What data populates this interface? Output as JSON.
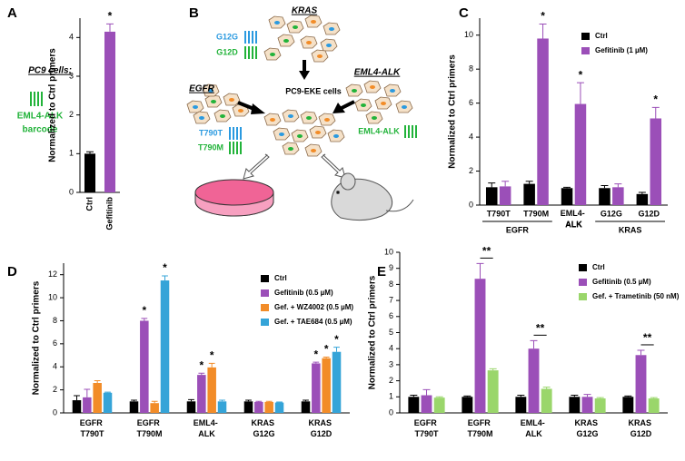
{
  "chart_data": [
    {
      "type": "bar",
      "panel_label": "A",
      "ylabel": "Normalized  to Ctrl primers",
      "ylim": [
        0,
        4.5
      ],
      "yticks": [
        0,
        1,
        2,
        3,
        4
      ],
      "categories": [
        "Ctrl",
        "Gefitinib"
      ],
      "series": [
        {
          "colors": [
            "#000000",
            "#9b4fb8"
          ],
          "values": [
            1.0,
            4.15
          ],
          "errors": [
            0.05,
            0.2
          ]
        }
      ],
      "annotations": [
        {
          "text": "*",
          "series": 0,
          "index": 1
        }
      ]
    },
    {
      "type": "bar",
      "panel_label": "C",
      "ylabel": "Normalized to Ctrl primers",
      "ylim": [
        0,
        11
      ],
      "yticks": [
        0,
        2,
        4,
        6,
        8,
        10
      ],
      "legend": "upper right",
      "categories": [
        "T790T",
        "T790M",
        "EML4- ALK",
        "G12G",
        "G12D"
      ],
      "groups": [
        {
          "label": "EGFR",
          "size": 2
        },
        {
          "label": "ALK",
          "size": 1
        },
        {
          "label": "KRAS",
          "size": 2
        }
      ],
      "series": [
        {
          "name": "Ctrl",
          "color": "#000000",
          "values": [
            1.05,
            1.25,
            1.0,
            1.0,
            0.65
          ],
          "errors": [
            0.25,
            0.15,
            0.05,
            0.15,
            0.1
          ]
        },
        {
          "name": "Gefitinib (1 µM)",
          "color": "#9b4fb8",
          "values": [
            1.1,
            9.8,
            5.95,
            1.05,
            5.1
          ],
          "errors": [
            0.3,
            0.85,
            1.25,
            0.2,
            0.65
          ]
        }
      ],
      "annotations": [
        {
          "text": "*",
          "series": 1,
          "index": 1
        },
        {
          "text": "*",
          "series": 1,
          "index": 2
        },
        {
          "text": "*",
          "series": 1,
          "index": 4
        }
      ]
    },
    {
      "type": "bar",
      "panel_label": "D",
      "ylabel": "Normalized  to Ctrl primers",
      "ylim": [
        0,
        13
      ],
      "yticks": [
        0,
        2,
        4,
        6,
        8,
        10,
        12
      ],
      "legend": "upper right",
      "categories": [
        "EGFR T790T",
        "EGFR T790M",
        "EML4- ALK",
        "KRAS G12G",
        "KRAS G12D"
      ],
      "series": [
        {
          "name": "Ctrl",
          "color": "#000000",
          "values": [
            1.1,
            1.0,
            1.0,
            1.0,
            1.0
          ],
          "errors": [
            0.4,
            0.1,
            0.15,
            0.1,
            0.1
          ]
        },
        {
          "name": "Gefitinib (0.5 µM)",
          "color": "#9b4fb8",
          "values": [
            1.35,
            8.0,
            3.3,
            0.95,
            4.3
          ],
          "errors": [
            0.7,
            0.2,
            0.15,
            0.05,
            0.1
          ]
        },
        {
          "name": "Gef. + WZ4002 (0.5 µM)",
          "color": "#f28c28",
          "values": [
            2.6,
            0.85,
            3.95,
            0.95,
            4.75
          ],
          "errors": [
            0.2,
            0.15,
            0.35,
            0.05,
            0.1
          ]
        },
        {
          "name": "Gef. + TAE684 (0.5 µM)",
          "color": "#35a4d8",
          "values": [
            1.75,
            11.5,
            1.0,
            0.9,
            5.3
          ],
          "errors": [
            0.05,
            0.4,
            0.1,
            0.05,
            0.4
          ]
        }
      ],
      "annotations": [
        {
          "text": "*",
          "series": 1,
          "index": 1
        },
        {
          "text": "*",
          "series": 3,
          "index": 1
        },
        {
          "text": "*",
          "series": 1,
          "index": 2
        },
        {
          "text": "*",
          "series": 2,
          "index": 2
        },
        {
          "text": "*",
          "series": 1,
          "index": 4
        },
        {
          "text": "*",
          "series": 2,
          "index": 4
        },
        {
          "text": "*",
          "series": 3,
          "index": 4
        }
      ]
    },
    {
      "type": "bar",
      "panel_label": "E",
      "ylabel": "Normalized to Ctrl primers",
      "ylim": [
        0,
        10
      ],
      "yticks": [
        0,
        1,
        2,
        3,
        4,
        5,
        6,
        7,
        8,
        9,
        10
      ],
      "legend": "upper right",
      "categories": [
        "EGFR T790T",
        "EGFR T790M",
        "EML4- ALK",
        "KRAS G12G",
        "KRAS G12D"
      ],
      "series": [
        {
          "name": "Ctrl",
          "color": "#000000",
          "values": [
            1.0,
            1.0,
            1.0,
            1.0,
            1.0
          ],
          "errors": [
            0.1,
            0.05,
            0.1,
            0.1,
            0.05
          ]
        },
        {
          "name": "Gefitinib (0.5 µM)",
          "color": "#9b4fb8",
          "values": [
            1.1,
            8.35,
            4.0,
            1.0,
            3.6
          ],
          "errors": [
            0.35,
            0.95,
            0.5,
            0.15,
            0.3
          ]
        },
        {
          "name": "Gef. + Trametinib (50 nM)",
          "color": "#9ad66b",
          "values": [
            0.95,
            2.65,
            1.5,
            0.9,
            0.9
          ],
          "errors": [
            0.05,
            0.1,
            0.1,
            0.05,
            0.05
          ]
        }
      ],
      "annotations": [
        {
          "text": "**",
          "series": 1,
          "index": 1
        },
        {
          "text": "**",
          "series": 1,
          "index": 2
        },
        {
          "text": "**",
          "series": 1,
          "index": 4
        }
      ]
    }
  ],
  "side_note": {
    "title": "PC9 cells:",
    "line1": "EML4-ALK",
    "line2": "barcode"
  },
  "diagram": {
    "panel_label": "B",
    "kras": "KRAS",
    "g12g": "G12G",
    "g12d": "G12D",
    "egfr": "EGFR",
    "eml4_alk": "EML4-ALK",
    "center": "PC9-EKE cells",
    "t790t": "T790T",
    "t790m": "T790M",
    "eml4_alk_barcode": "EML4-ALK"
  }
}
